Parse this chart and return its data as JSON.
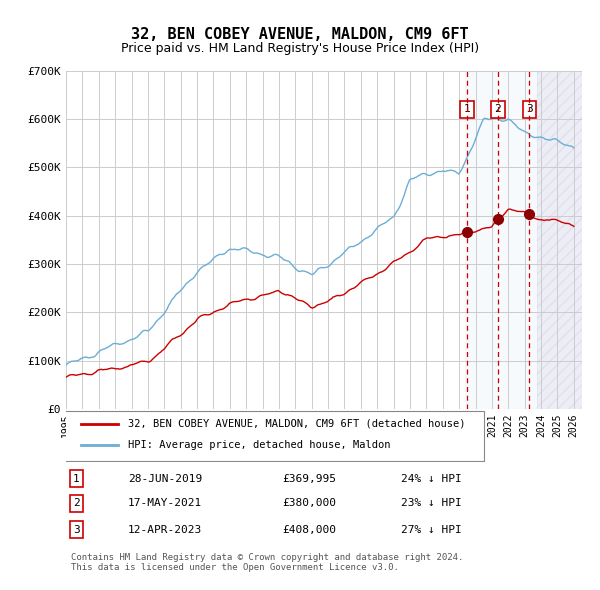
{
  "title": "32, BEN COBEY AVENUE, MALDON, CM9 6FT",
  "subtitle": "Price paid vs. HM Land Registry's House Price Index (HPI)",
  "footer": "Contains HM Land Registry data © Crown copyright and database right 2024.\nThis data is licensed under the Open Government Licence v3.0.",
  "legend_house": "32, BEN COBEY AVENUE, MALDON, CM9 6FT (detached house)",
  "legend_hpi": "HPI: Average price, detached house, Maldon",
  "transactions": [
    {
      "num": 1,
      "date": "28-JUN-2019",
      "price": 369995,
      "hpi_diff": "24% ↓ HPI",
      "x_year": 2019.49
    },
    {
      "num": 2,
      "date": "17-MAY-2021",
      "price": 380000,
      "hpi_diff": "23% ↓ HPI",
      "x_year": 2021.37
    },
    {
      "num": 3,
      "date": "12-APR-2023",
      "price": 408000,
      "hpi_diff": "27% ↓ HPI",
      "x_year": 2023.28
    }
  ],
  "hpi_color": "#6baed6",
  "house_color": "#cc0000",
  "dot_color": "#8b0000",
  "vline_color": "#cc0000",
  "shade_color": "#d0e4f7",
  "hatch_color": "#aaaacc",
  "grid_color": "#cccccc",
  "bg_color": "#ffffff",
  "ylim": [
    0,
    700000
  ],
  "yticks": [
    0,
    100000,
    200000,
    300000,
    400000,
    500000,
    600000,
    700000
  ],
  "xlim_start": 1995.0,
  "xlim_end": 2026.5,
  "xticks": [
    1995,
    1996,
    1997,
    1998,
    1999,
    2000,
    2001,
    2002,
    2003,
    2004,
    2005,
    2006,
    2007,
    2008,
    2009,
    2010,
    2011,
    2012,
    2013,
    2014,
    2015,
    2016,
    2017,
    2018,
    2019,
    2020,
    2021,
    2022,
    2023,
    2024,
    2025,
    2026
  ]
}
